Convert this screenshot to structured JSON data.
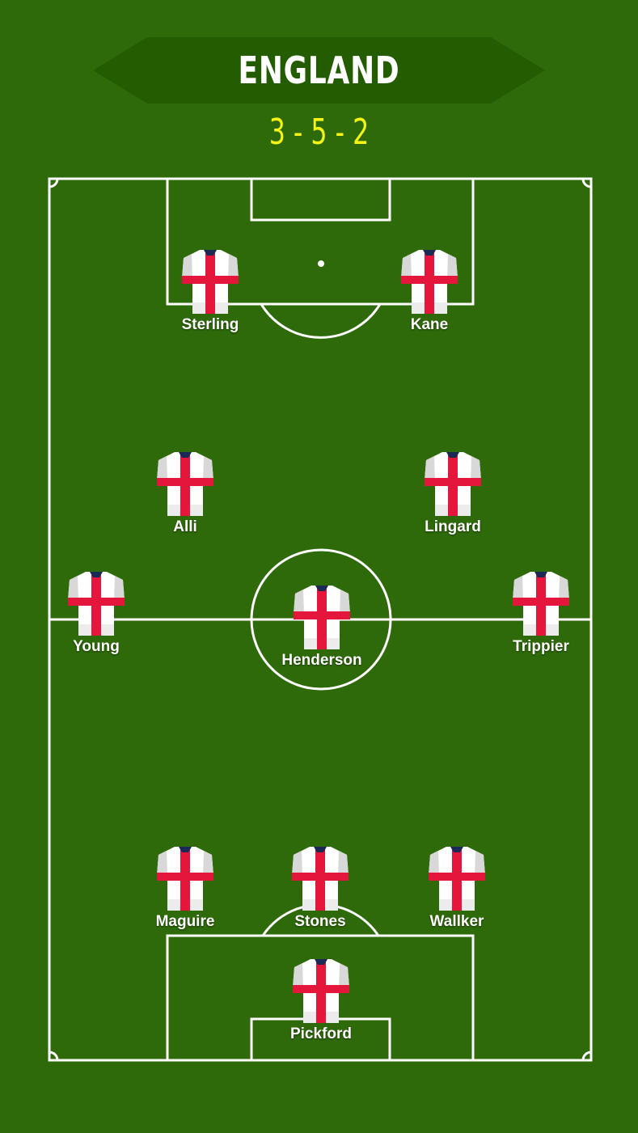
{
  "team": "ENGLAND",
  "formation": "3 - 5 - 2",
  "colors": {
    "grass": "#2e6a0a",
    "banner": "#245c02",
    "formation": "#f4f414",
    "lines": "#ffffff",
    "shirt_cross": "#e4163c",
    "collar": "#1b2a55"
  },
  "players": {
    "sterling": "Sterling",
    "kane": "Kane",
    "alli": "Alli",
    "lingard": "Lingard",
    "young": "Young",
    "henderson": "Henderson",
    "trippier": "Trippier",
    "maguire": "Maguire",
    "stones": "Stones",
    "walker": "Wallker",
    "pickford": "Pickford"
  }
}
